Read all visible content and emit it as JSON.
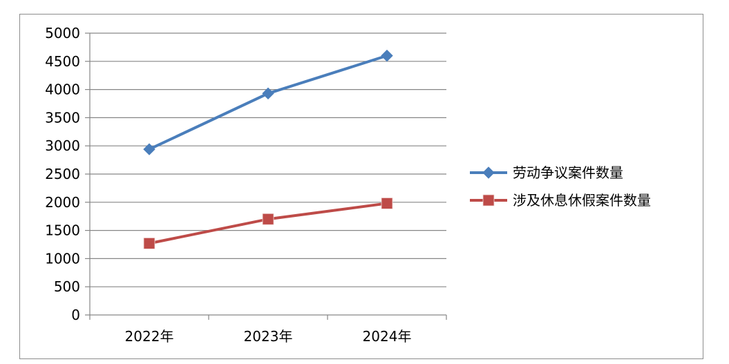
{
  "chart_data": {
    "type": "line",
    "categories": [
      "2022年",
      "2023年",
      "2024年"
    ],
    "series": [
      {
        "name": "劳动争议案件数量",
        "values": [
          2940,
          3930,
          4600
        ],
        "color": "#4a7ebb",
        "marker": "diamond"
      },
      {
        "name": "涉及休息休假案件数量",
        "values": [
          1270,
          1700,
          1980
        ],
        "color": "#be4b48",
        "marker": "square"
      }
    ],
    "ylim": [
      0,
      5000
    ],
    "y_ticks": [
      "0",
      "500",
      "1000",
      "1500",
      "2000",
      "2500",
      "3000",
      "3500",
      "4000",
      "4500",
      "5000"
    ],
    "grid": true,
    "legend_position": "right",
    "title": "",
    "xlabel": "",
    "ylabel": ""
  }
}
